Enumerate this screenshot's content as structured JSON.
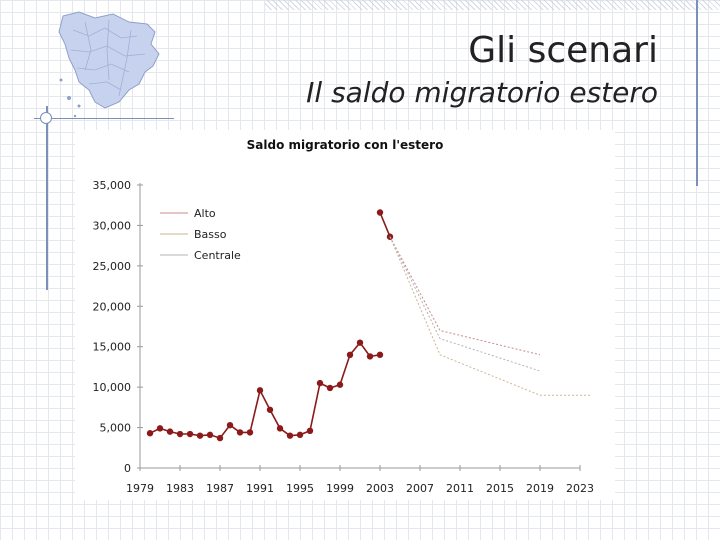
{
  "slide": {
    "title": "Gli scenari",
    "subtitle": "Il saldo migratorio estero"
  },
  "chart_data": {
    "type": "line",
    "title": "Saldo migratorio con l'estero",
    "xlabel": "",
    "ylabel": "",
    "ylim": [
      0,
      35000
    ],
    "xlim": [
      1979,
      2023
    ],
    "yticks": [
      0,
      5000,
      10000,
      15000,
      20000,
      25000,
      30000,
      35000
    ],
    "ytick_labels": [
      "0",
      "5,000",
      "10,000",
      "15,000",
      "20,000",
      "25,000",
      "30,000",
      "35,000"
    ],
    "xticks": [
      1979,
      1983,
      1987,
      1991,
      1995,
      1999,
      2003,
      2007,
      2011,
      2015,
      2019,
      2023
    ],
    "xtick_labels": [
      "1979",
      "1983",
      "1987",
      "1991",
      "1995",
      "1999",
      "2003",
      "2007",
      "2011",
      "2015",
      "2019",
      "2023"
    ],
    "legend_position": "top-left",
    "grid": false,
    "series": [
      {
        "name": "",
        "color": "#8b1a1a",
        "style": "solid-markers",
        "x": [
          1980,
          1981,
          1982,
          1983,
          1984,
          1985,
          1986,
          1987,
          1988,
          1989,
          1990,
          1991,
          1992,
          1993,
          1994,
          1995,
          1996,
          1997,
          1998,
          1999,
          2000,
          2001,
          2002,
          2003
        ],
        "y": [
          4300,
          4900,
          4500,
          4200,
          4200,
          4000,
          4100,
          3700,
          5300,
          4400,
          4400,
          9600,
          7200,
          4900,
          4000,
          4100,
          4600,
          10500,
          9900,
          10300,
          14000,
          15500,
          13800,
          14000
        ]
      },
      {
        "name": "",
        "color": "#8b1a1a",
        "style": "solid-markers",
        "x": [
          2003,
          2004
        ],
        "y": [
          31600,
          28600
        ]
      },
      {
        "name": "Alto",
        "color": "#c98a8a",
        "style": "dotted",
        "x": [
          2004,
          2009,
          2019
        ],
        "y": [
          28600,
          17000,
          14000
        ]
      },
      {
        "name": "Basso",
        "color": "#c8b494",
        "style": "dotted",
        "x": [
          2004,
          2009,
          2019,
          2024
        ],
        "y": [
          28600,
          14000,
          9000,
          9000
        ]
      },
      {
        "name": "Centrale",
        "color": "#b4b4b4",
        "style": "dotted",
        "x": [
          2004,
          2009,
          2019
        ],
        "y": [
          28600,
          16000,
          12000
        ]
      }
    ]
  },
  "colors": {
    "primary_series": "#8b1a1a",
    "rule": "#7a90b8",
    "map_fill": "#c7d3ee"
  },
  "icons": {
    "map": "tuscany-map-icon"
  }
}
